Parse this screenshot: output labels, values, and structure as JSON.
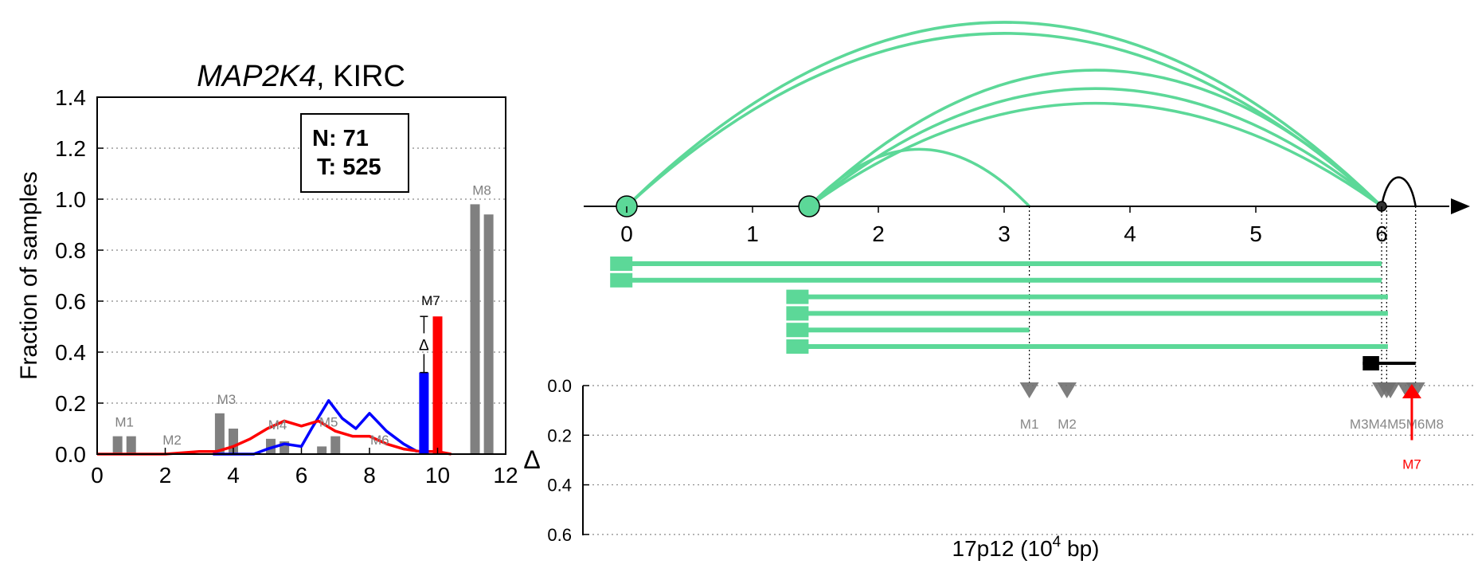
{
  "chart_data": [
    {
      "type": "bar",
      "title_italic": "MAP2K4",
      "title_rest": ", KIRC",
      "ylabel": "Fraction of samples",
      "xlim": [
        0,
        12
      ],
      "ylim": [
        0,
        1.4
      ],
      "xticks": [
        "0",
        "2",
        "4",
        "6",
        "8",
        "10",
        "12"
      ],
      "yticks": [
        "0.0",
        "0.2",
        "0.4",
        "0.6",
        "0.8",
        "1.0",
        "1.2",
        "1.4"
      ],
      "grid": "horizontal dotted",
      "infobox": {
        "n_label": "N: 71",
        "t_label": "T: 525"
      },
      "colors": {
        "gray": "#808080",
        "normal": "#0000ff",
        "tumor": "#ff0000"
      },
      "exon_bars": [
        {
          "label": "M1",
          "x": [
            0.6,
            1.0
          ],
          "values": [
            0.07,
            0.07
          ]
        },
        {
          "label": "M2",
          "x": [
            2.0,
            2.4
          ],
          "values": [
            0.0,
            0.0
          ]
        },
        {
          "label": "M3",
          "x": [
            3.6,
            4.0
          ],
          "values": [
            0.16,
            0.1
          ]
        },
        {
          "label": "M4",
          "x": [
            5.1,
            5.5
          ],
          "values": [
            0.06,
            0.05
          ]
        },
        {
          "label": "M5",
          "x": [
            6.6,
            7.0
          ],
          "values": [
            0.03,
            0.07
          ]
        },
        {
          "label": "M6",
          "x": [
            8.1,
            8.5
          ],
          "values": [
            0.0,
            0.0
          ]
        },
        {
          "label": "M8",
          "x": [
            11.1,
            11.5
          ],
          "values": [
            0.98,
            0.94
          ]
        }
      ],
      "highlight": {
        "label": "M7",
        "delta_symbol": "Δ",
        "normal_x": 9.6,
        "normal_value": 0.32,
        "tumor_x": 10.0,
        "tumor_value": 0.54
      },
      "series": [
        {
          "name": "normal",
          "x": [
            3.4,
            4.0,
            4.6,
            5.0,
            5.5,
            6.0,
            6.3,
            6.8,
            7.2,
            7.6,
            8.0,
            8.5,
            9.0,
            9.4
          ],
          "values": [
            0.0,
            0.0,
            0.0,
            0.02,
            0.04,
            0.03,
            0.1,
            0.21,
            0.14,
            0.1,
            0.16,
            0.09,
            0.04,
            0.01
          ]
        },
        {
          "name": "tumor",
          "x": [
            0.0,
            1.0,
            2.0,
            3.0,
            3.5,
            4.0,
            4.5,
            5.0,
            5.5,
            6.0,
            6.5,
            7.0,
            7.5,
            8.0,
            8.5,
            9.0,
            9.5,
            10.0,
            10.4
          ],
          "values": [
            0.0,
            0.0,
            0.0,
            0.01,
            0.01,
            0.03,
            0.06,
            0.1,
            0.13,
            0.11,
            0.13,
            0.09,
            0.07,
            0.07,
            0.04,
            0.02,
            0.01,
            0.01,
            0.0
          ]
        }
      ]
    },
    {
      "type": "diagram",
      "xlabel_main": "17p12 (10",
      "xlabel_sup": "4",
      "xlabel_end": " bp)",
      "axis_ticks": [
        "0",
        "1",
        "2",
        "3",
        "4",
        "5",
        "6"
      ],
      "delta_label": "Δ",
      "delta_ylim": [
        0,
        0.7
      ],
      "delta_yticks": [
        "0.0",
        "0.2",
        "0.4",
        "0.6"
      ],
      "colors": {
        "transcript": "#5cd898",
        "marker": "#707070",
        "highlight": "#ff0000",
        "gene": "#000000"
      },
      "arcs": [
        {
          "from": 0.0,
          "to": 6.0,
          "height": 1.0
        },
        {
          "from": 0.0,
          "to": 6.0,
          "height": 0.94
        },
        {
          "from": 1.45,
          "to": 6.0,
          "height": 0.74
        },
        {
          "from": 1.45,
          "to": 6.0,
          "height": 0.64
        },
        {
          "from": 1.45,
          "to": 6.0,
          "height": 0.56
        },
        {
          "from": 1.45,
          "to": 3.2,
          "height": 0.31
        }
      ],
      "small_arc": {
        "from": 6.0,
        "to": 6.27,
        "height": 0.15
      },
      "nodes": [
        {
          "pos": 0.0,
          "size": "large"
        },
        {
          "pos": 1.45,
          "size": "large"
        },
        {
          "pos": 6.0,
          "size": "small"
        }
      ],
      "transcripts": [
        {
          "start": -0.1,
          "end": 6.0
        },
        {
          "start": -0.1,
          "end": 6.0
        },
        {
          "start": 1.3,
          "end": 6.05
        },
        {
          "start": 1.3,
          "end": 6.05
        },
        {
          "start": 1.3,
          "end": 3.2
        },
        {
          "start": 1.3,
          "end": 6.05
        }
      ],
      "gene": {
        "start": 5.85,
        "end": 6.27,
        "block_end": 5.98
      },
      "markers": [
        {
          "label": "M1",
          "pos": 3.2,
          "delta": 0.0
        },
        {
          "label": "M2",
          "pos": 3.5,
          "delta": 0.0
        },
        {
          "label": "M3",
          "pos": 6.0,
          "delta": 0.0
        },
        {
          "label": "M4",
          "pos": 6.04,
          "delta": 0.0
        },
        {
          "label": "M5",
          "pos": 6.07,
          "delta": 0.0
        },
        {
          "label": "M6",
          "pos": 6.2,
          "delta": 0.0
        },
        {
          "label": "M8",
          "pos": 6.27,
          "delta": 0.0
        }
      ],
      "marker_labels_text": [
        {
          "text": "M1",
          "pos": 3.2
        },
        {
          "text": "M2",
          "pos": 3.5
        },
        {
          "text": "M3M4M5M6M8",
          "pos": 6.12
        }
      ],
      "highlight_marker": {
        "label": "M7",
        "pos": 6.24,
        "delta": 0.22
      },
      "vlines": [
        3.2,
        6.0,
        6.04,
        6.27
      ]
    }
  ]
}
